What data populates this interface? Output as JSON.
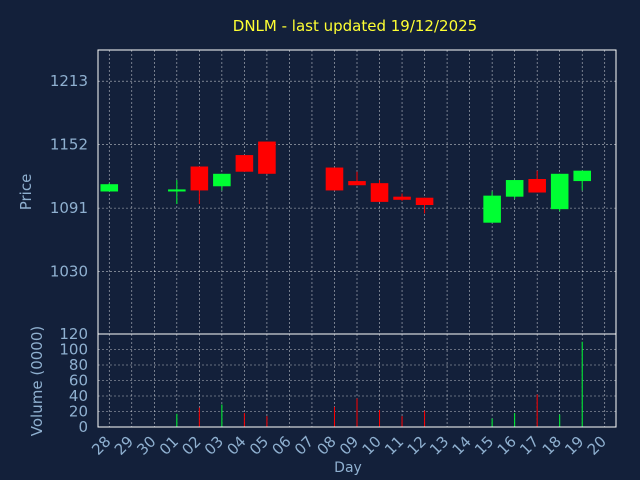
{
  "chart_data": [
    {
      "type": "candlestick",
      "title": "DNLM - last updated 19/12/2025",
      "ylabel": "Price",
      "ylim": [
        970,
        1243
      ],
      "yticks": [
        1030,
        1091,
        1152,
        1213
      ],
      "grid": true,
      "up_color": "#00ff33",
      "down_color": "#ff0000",
      "categories": [
        "28",
        "29",
        "30",
        "01",
        "02",
        "03",
        "04",
        "05",
        "06",
        "07",
        "08",
        "09",
        "10",
        "11",
        "12",
        "13",
        "14",
        "15",
        "16",
        "17",
        "18",
        "19",
        "20"
      ],
      "candles": [
        {
          "day": "28",
          "open": 1107,
          "high": 1115,
          "low": 1107,
          "close": 1114
        },
        {
          "day": "01",
          "open": 1107,
          "high": 1118,
          "low": 1095,
          "close": 1109
        },
        {
          "day": "02",
          "open": 1131,
          "high": 1131,
          "low": 1095,
          "close": 1108
        },
        {
          "day": "03",
          "open": 1112,
          "high": 1124,
          "low": 1108,
          "close": 1124
        },
        {
          "day": "04",
          "open": 1142,
          "high": 1142,
          "low": 1126,
          "close": 1126
        },
        {
          "day": "05",
          "open": 1155,
          "high": 1155,
          "low": 1124,
          "close": 1124
        },
        {
          "day": "08",
          "open": 1130,
          "high": 1130,
          "low": 1108,
          "close": 1108
        },
        {
          "day": "09",
          "open": 1117,
          "high": 1126,
          "low": 1113,
          "close": 1113
        },
        {
          "day": "10",
          "open": 1115,
          "high": 1118,
          "low": 1097,
          "close": 1097
        },
        {
          "day": "11",
          "open": 1102,
          "high": 1105,
          "low": 1098,
          "close": 1099
        },
        {
          "day": "12",
          "open": 1101,
          "high": 1101,
          "low": 1086,
          "close": 1094
        },
        {
          "day": "15",
          "open": 1077,
          "high": 1107,
          "low": 1077,
          "close": 1103
        },
        {
          "day": "16",
          "open": 1102,
          "high": 1118,
          "low": 1100,
          "close": 1118
        },
        {
          "day": "17",
          "open": 1119,
          "high": 1127,
          "low": 1106,
          "close": 1106
        },
        {
          "day": "18",
          "open": 1090,
          "high": 1124,
          "low": 1088,
          "close": 1124
        },
        {
          "day": "19",
          "open": 1117,
          "high": 1127,
          "low": 1108,
          "close": 1127
        }
      ]
    },
    {
      "type": "bar",
      "ylabel": "Volume (0000)",
      "xlabel": "Day",
      "ylim": [
        0,
        120
      ],
      "yticks": [
        0,
        20,
        40,
        60,
        80,
        100,
        120
      ],
      "grid": true,
      "categories": [
        "28",
        "29",
        "30",
        "01",
        "02",
        "03",
        "04",
        "05",
        "06",
        "07",
        "08",
        "09",
        "10",
        "11",
        "12",
        "13",
        "14",
        "15",
        "16",
        "17",
        "18",
        "19",
        "20"
      ],
      "bars": [
        {
          "day": "01",
          "value": 17,
          "color": "#00ff33"
        },
        {
          "day": "02",
          "value": 25,
          "color": "#ff0000"
        },
        {
          "day": "03",
          "value": 29,
          "color": "#00ff33"
        },
        {
          "day": "04",
          "value": 18,
          "color": "#ff0000"
        },
        {
          "day": "05",
          "value": 14,
          "color": "#ff0000"
        },
        {
          "day": "08",
          "value": 26,
          "color": "#ff0000"
        },
        {
          "day": "09",
          "value": 37,
          "color": "#ff0000"
        },
        {
          "day": "10",
          "value": 22,
          "color": "#ff0000"
        },
        {
          "day": "11",
          "value": 14,
          "color": "#ff0000"
        },
        {
          "day": "12",
          "value": 21,
          "color": "#ff0000"
        },
        {
          "day": "15",
          "value": 11,
          "color": "#00ff33"
        },
        {
          "day": "16",
          "value": 18,
          "color": "#00ff33"
        },
        {
          "day": "17",
          "value": 42,
          "color": "#ff0000"
        },
        {
          "day": "18",
          "value": 16,
          "color": "#00ff33"
        },
        {
          "day": "19",
          "value": 110,
          "color": "#00ff33"
        }
      ]
    }
  ],
  "colors": {
    "background": "#13203a",
    "title": "#ffff33",
    "axis_text": "#8fb0d0",
    "frame": "#ffffff",
    "grid": "#ffffff"
  }
}
